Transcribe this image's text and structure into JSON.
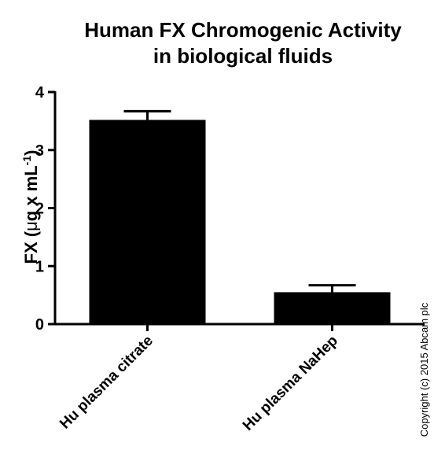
{
  "chart_data": {
    "type": "bar",
    "title": [
      "Human FX Chromogenic Activity",
      "in biological fluids"
    ],
    "ylabel": {
      "base": "FX (",
      "mu": "μ",
      "mid": "g x mL",
      "sup": "-1",
      "end": ")"
    },
    "xlabel": "",
    "categories": [
      "Hu plasma citrate",
      "Hu plasma NaHep"
    ],
    "values": [
      3.52,
      0.55
    ],
    "errors": [
      0.15,
      0.12
    ],
    "ylim": [
      0,
      4
    ],
    "yticks": [
      "0",
      "1",
      "2",
      "3",
      "4"
    ],
    "grid": false,
    "bar_color": "#000000"
  },
  "copyright": "Copyright (c) 2015 Abcam plc"
}
